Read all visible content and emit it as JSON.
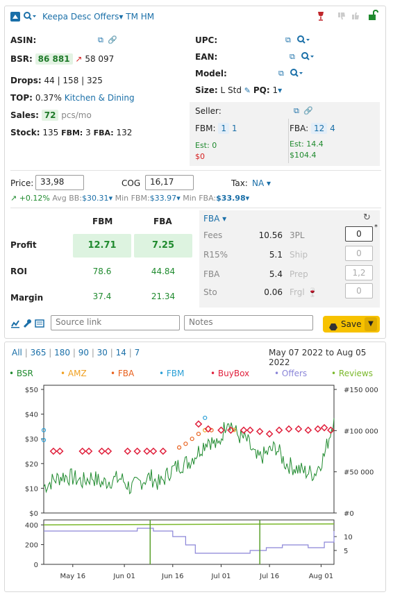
{
  "header": {
    "title": "Keepa Desc Offers",
    "extra": "TM HM",
    "dropdown_caret": "▾"
  },
  "left": {
    "asin_label": "ASIN:",
    "bsr_label": "BSR:",
    "bsr_value": "86 881",
    "bsr_prev": "58 097",
    "drops_label": "Drops:",
    "drops_value": "44 | 158 | 325",
    "top_label": "TOP:",
    "top_value": "0.37%",
    "top_category": "Kitchen & Dining",
    "sales_label": "Sales:",
    "sales_value": "72",
    "sales_unit": "pcs/mo",
    "stock_label": "Stock:",
    "stock_value": "135",
    "stock_fbm_label": "FBM:",
    "stock_fbm": "3",
    "stock_fba_label": "FBA:",
    "stock_fba": "132"
  },
  "right": {
    "upc_label": "UPC:",
    "ean_label": "EAN:",
    "model_label": "Model:",
    "size_label": "Size:",
    "size_value": "L Std",
    "pq_label": "PQ:",
    "pq_value": "1"
  },
  "seller": {
    "label": "Seller:",
    "fbm_label": "FBM:",
    "fbm_count": "1",
    "fbm_offers": "1",
    "fbm_est_label": "Est:",
    "fbm_est": "0",
    "fbm_money": "$0",
    "fba_label": "FBA:",
    "fba_count": "12",
    "fba_offers": "4",
    "fba_est_label": "Est:",
    "fba_est": "14.4",
    "fba_money": "$104.4"
  },
  "pricing": {
    "price_label": "Price:",
    "price_value": "33,98",
    "cog_label": "COG",
    "cog_value": "16,17",
    "tax_label": "Tax:",
    "tax_value": "NA",
    "change": "+0.12%",
    "avg_bb_label": "Avg BB:",
    "avg_bb": "$30.31",
    "min_fbm_label": "Min FBM:",
    "min_fbm": "$33.97",
    "min_fba_label": "Min FBA:",
    "min_fba": "$33.98"
  },
  "profit_table": {
    "col_fbm": "FBM",
    "col_fba": "FBA",
    "rows": [
      {
        "label": "Profit",
        "fbm": "12.71",
        "fba": "7.25"
      },
      {
        "label": "ROI",
        "fbm": "78.6",
        "fba": "44.84"
      },
      {
        "label": "Margin",
        "fbm": "37.4",
        "fba": "21.34"
      }
    ]
  },
  "fees": {
    "mode": "FBA",
    "rows": [
      {
        "label": "Fees",
        "value": "10.56",
        "right_label": "3PL",
        "right_value": "0"
      },
      {
        "label": "R15%",
        "value": "5.1",
        "right_label": "Ship",
        "right_value": "0"
      },
      {
        "label": "FBA",
        "value": "5.4",
        "right_label": "Prep",
        "right_value": "1,2"
      },
      {
        "label": "Sto",
        "value": "0.06",
        "right_label": "Frgl",
        "right_value": "0"
      }
    ],
    "asterisk": "*"
  },
  "footer": {
    "source_placeholder": "Source link",
    "notes_placeholder": "Notes",
    "save_label": "Save"
  },
  "chart_panel": {
    "ranges": [
      "All",
      "365",
      "180",
      "90",
      "30",
      "14",
      "7"
    ],
    "date_range": "May 07 2022 to Aug 05 2022",
    "legend": [
      {
        "name": "BSR",
        "color": "#1f8a2e"
      },
      {
        "name": "AMZ",
        "color": "#f0a020"
      },
      {
        "name": "FBA",
        "color": "#e8601c"
      },
      {
        "name": "FBM",
        "color": "#2a9fd6"
      },
      {
        "name": "BuyBox",
        "color": "#e0203c"
      },
      {
        "name": "Offers",
        "color": "#8a85d8"
      },
      {
        "name": "Reviews",
        "color": "#7ab82a"
      }
    ]
  },
  "chart_data": [
    {
      "type": "line",
      "title": "",
      "ylabel": "",
      "y_left_ticks": [
        "$50",
        "$40",
        "$30",
        "$20",
        "$10",
        "$0"
      ],
      "ylim_left": [
        0,
        50
      ],
      "y_right_ticks": [
        "#150 000",
        "#100 000",
        "#50 000",
        "#0"
      ],
      "ylim_right": [
        0,
        150000
      ],
      "x_ticks": [
        "May 16",
        "Jun 01",
        "Jun 16",
        "Jul 01",
        "Jul 16",
        "Aug 01"
      ],
      "xlim": [
        "2022-05-07",
        "2022-08-05"
      ],
      "grid": false,
      "series": [
        {
          "name": "BSR",
          "axis": "right",
          "x": [
            "2022-05-07",
            "2022-05-10",
            "2022-05-13",
            "2022-05-16",
            "2022-05-19",
            "2022-05-22",
            "2022-05-25",
            "2022-05-28",
            "2022-05-31",
            "2022-06-03",
            "2022-06-06",
            "2022-06-09",
            "2022-06-12",
            "2022-06-15",
            "2022-06-18",
            "2022-06-21",
            "2022-06-24",
            "2022-06-27",
            "2022-06-30",
            "2022-07-03",
            "2022-07-06",
            "2022-07-09",
            "2022-07-12",
            "2022-07-15",
            "2022-07-18",
            "2022-07-21",
            "2022-07-24",
            "2022-07-27",
            "2022-07-30",
            "2022-08-02",
            "2022-08-05"
          ],
          "values": [
            32000,
            40000,
            45000,
            43000,
            38000,
            44000,
            36000,
            40000,
            42000,
            30000,
            38000,
            44000,
            35000,
            50000,
            58000,
            62000,
            75000,
            90000,
            80000,
            115000,
            95000,
            88000,
            65000,
            72000,
            80000,
            60000,
            55000,
            50000,
            48000,
            70000,
            115000
          ]
        },
        {
          "name": "FBM",
          "axis": "left",
          "x": [
            "2022-05-07",
            "2022-05-07",
            "2022-06-26"
          ],
          "values": [
            33.5,
            29.5,
            38.5
          ]
        },
        {
          "name": "FBA",
          "axis": "left",
          "x": [
            "2022-06-18",
            "2022-06-20",
            "2022-06-22",
            "2022-06-24",
            "2022-06-28"
          ],
          "values": [
            26.5,
            28,
            30,
            32,
            33.5
          ]
        },
        {
          "name": "AMZ",
          "axis": "left",
          "x": [
            "2022-06-26",
            "2022-07-05"
          ],
          "values": [
            33.5,
            33.6
          ]
        },
        {
          "name": "BuyBox",
          "axis": "left",
          "x": [
            "2022-05-10",
            "2022-05-12",
            "2022-05-19",
            "2022-05-21",
            "2022-05-25",
            "2022-05-27",
            "2022-06-02",
            "2022-06-05",
            "2022-06-08",
            "2022-06-10",
            "2022-06-13",
            "2022-06-24",
            "2022-06-27",
            "2022-07-01",
            "2022-07-04",
            "2022-07-08",
            "2022-07-10",
            "2022-07-13",
            "2022-07-16",
            "2022-07-19",
            "2022-07-22",
            "2022-07-25",
            "2022-07-28",
            "2022-07-31",
            "2022-08-02",
            "2022-08-04"
          ],
          "values": [
            25,
            25,
            25,
            25,
            25,
            25,
            25,
            25,
            25,
            25,
            25,
            36,
            34,
            33.5,
            33.5,
            33.5,
            33.5,
            33,
            32,
            33.5,
            34,
            34,
            33.5,
            34,
            34.5,
            33.5
          ]
        }
      ]
    },
    {
      "type": "line",
      "title": "",
      "y_left_ticks": [
        "400",
        "200",
        "0"
      ],
      "ylim_left": [
        0,
        450
      ],
      "y_right_ticks": [
        "10",
        "5"
      ],
      "ylim_right": [
        0,
        16
      ],
      "series": [
        {
          "name": "Reviews",
          "axis": "left",
          "x": [
            "2022-05-07",
            "2022-08-05"
          ],
          "values": [
            400,
            410
          ]
        },
        {
          "name": "Offers",
          "axis": "right",
          "x": [
            "2022-05-07",
            "2022-05-20",
            "2022-06-05",
            "2022-06-10",
            "2022-06-16",
            "2022-06-20",
            "2022-06-23",
            "2022-07-01",
            "2022-07-10",
            "2022-07-15",
            "2022-07-20",
            "2022-07-28",
            "2022-08-02",
            "2022-08-05"
          ],
          "values": [
            12,
            12,
            13,
            12,
            10,
            7,
            4,
            4,
            5,
            6,
            7,
            6,
            8,
            12
          ]
        },
        {
          "name": "BSR events",
          "axis": "left",
          "x": [
            "2022-06-09",
            "2022-07-13"
          ],
          "values": [
            450,
            450
          ]
        }
      ]
    }
  ]
}
